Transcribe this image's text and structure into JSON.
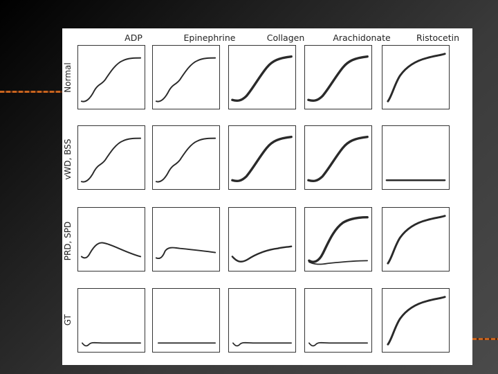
{
  "figure": {
    "columns": [
      "ADP",
      "Epinephrine",
      "Collagen",
      "Arachidonate",
      "Ristocetin"
    ],
    "rows": [
      "Normal",
      "vWD, BSS",
      "PRD, SPD",
      "GT"
    ],
    "panels": [
      [
        "sigmoid-biphasic",
        "sigmoid-biphasic",
        "sigmoid-thick",
        "sigmoid-thick",
        "fast-rise"
      ],
      [
        "sigmoid-biphasic",
        "sigmoid-biphasic",
        "sigmoid-thick",
        "sigmoid-thick",
        "flat"
      ],
      [
        "hump-decline",
        "small-plateau",
        "slow-rise",
        "rise-and-baseline",
        "fast-rise"
      ],
      [
        "dip-flat",
        "flat-low",
        "dip-flat",
        "dip-flat",
        "fast-rise"
      ]
    ]
  },
  "colors": {
    "background": "#333333",
    "accent": "#c8641e",
    "trace": "#2a2a2a"
  }
}
